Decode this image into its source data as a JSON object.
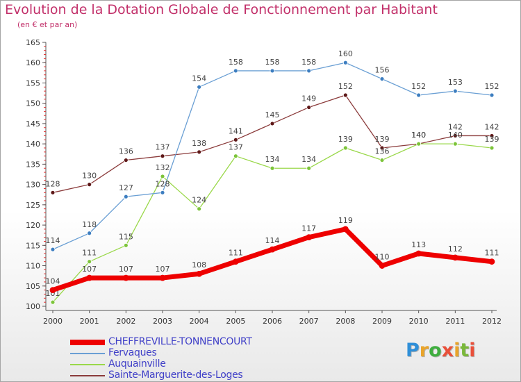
{
  "title": "Evolution de la Dotation Globale de Fonctionnement par Habitant",
  "subtitle": "(en € et par an)",
  "logo": {
    "text": "Proxiti",
    "colors": [
      "#2f8fd8",
      "#e9a42a",
      "#3fae3f",
      "#e9503a",
      "#e9a42a",
      "#7ab83a",
      "#e9503a"
    ]
  },
  "chart_data": {
    "type": "line",
    "x": [
      2000,
      2001,
      2002,
      2003,
      2004,
      2005,
      2006,
      2007,
      2008,
      2009,
      2010,
      2011,
      2012
    ],
    "ylim": [
      100,
      165
    ],
    "yticks": [
      100,
      105,
      110,
      115,
      120,
      125,
      130,
      135,
      140,
      145,
      150,
      155,
      160,
      165
    ],
    "grid": "none",
    "legend": "bottom-left",
    "series": [
      {
        "name": "CHEFFREVILLE-TONNENCOURT",
        "color": "#ee0000",
        "width": 7,
        "values": [
          104,
          107,
          107,
          107,
          108,
          111,
          114,
          117,
          119,
          110,
          113,
          112,
          111
        ]
      },
      {
        "name": "Fervaques",
        "color": "#6a9fd4",
        "marker": "#3d7ec0",
        "width": 1.3,
        "values": [
          114,
          118,
          127,
          128,
          154,
          158,
          158,
          158,
          160,
          156,
          152,
          153,
          152
        ]
      },
      {
        "name": "Auquainville",
        "color": "#9ad84a",
        "marker": "#7cc43a",
        "width": 1.3,
        "values": [
          101,
          111,
          115,
          132,
          124,
          137,
          134,
          134,
          139,
          136,
          140,
          140,
          139
        ]
      },
      {
        "name": "Sainte-Marguerite-des-Loges",
        "color": "#8b3b3b",
        "marker": "#5e1818",
        "width": 1.3,
        "values": [
          128,
          130,
          136,
          137,
          138,
          141,
          145,
          149,
          152,
          139,
          140,
          142,
          142
        ]
      }
    ]
  }
}
